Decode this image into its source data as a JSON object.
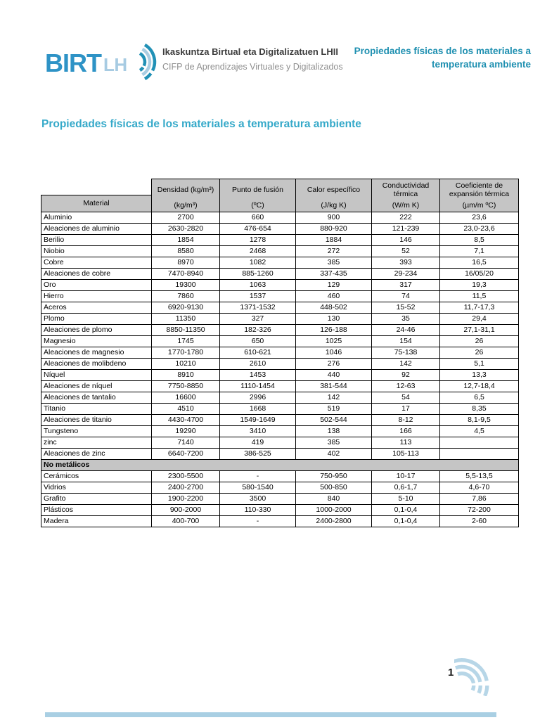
{
  "header": {
    "logo": {
      "brand": "BIRT",
      "brand_sub": "LH"
    },
    "org_line1": "Ikaskuntza Birtual eta Digitalizatuen LHII",
    "org_line2": "CIFP de Aprendizajes Virtuales y Digitalizados",
    "doc_title": "Propiedades físicas de los materiales a temperatura ambiente"
  },
  "page": {
    "heading": "Propiedades físicas de los materiales a temperatura ambiente",
    "number": "1"
  },
  "table": {
    "columns": [
      {
        "title": "Material",
        "unit": ""
      },
      {
        "title": "Densidad (kg/m³)",
        "unit": "(kg/m³)"
      },
      {
        "title": "Punto de fusión",
        "unit": "(ºC)"
      },
      {
        "title": "Calor específico",
        "unit": "(J/kg K)"
      },
      {
        "title": "Conductividad térmica",
        "unit": "(W/m K)"
      },
      {
        "title": "Coeficiente de expansión térmica",
        "unit": "(µm/m ºC)"
      }
    ],
    "metal_rows": [
      [
        "Aluminio",
        "2700",
        "660",
        "900",
        "222",
        "23,6"
      ],
      [
        "Aleaciones de aluminio",
        "2630-2820",
        "476-654",
        "880-920",
        "121-239",
        "23,0-23,6"
      ],
      [
        "Berilio",
        "1854",
        "1278",
        "1884",
        "146",
        "8,5"
      ],
      [
        "Niobio",
        "8580",
        "2468",
        "272",
        "52",
        "7,1"
      ],
      [
        "Cobre",
        "8970",
        "1082",
        "385",
        "393",
        "16,5"
      ],
      [
        "Aleaciones de cobre",
        "7470-8940",
        "885-1260",
        "337-435",
        "29-234",
        "16/05/20"
      ],
      [
        "Oro",
        "19300",
        "1063",
        "129",
        "317",
        "19,3"
      ],
      [
        "Hierro",
        "7860",
        "1537",
        "460",
        "74",
        "11,5"
      ],
      [
        "Aceros",
        "6920-9130",
        "1371-1532",
        "448-502",
        "15-52",
        "11,7-17,3"
      ],
      [
        "Plomo",
        "11350",
        "327",
        "130",
        "35",
        "29,4"
      ],
      [
        "Aleaciones de plomo",
        "8850-11350",
        "182-326",
        "126-188",
        "24-46",
        "27,1-31,1"
      ],
      [
        "Magnesio",
        "1745",
        "650",
        "1025",
        "154",
        "26"
      ],
      [
        "Aleaciones de magnesio",
        "1770-1780",
        "610-621",
        "1046",
        "75-138",
        "26"
      ],
      [
        "Aleaciones de molibdeno",
        "10210",
        "2610",
        "276",
        "142",
        "5,1"
      ],
      [
        "Níquel",
        "8910",
        "1453",
        "440",
        "92",
        "13,3"
      ],
      [
        "Aleaciones de níquel",
        "7750-8850",
        "1110-1454",
        "381-544",
        "12-63",
        "12,7-18,4"
      ],
      [
        "Aleaciones de tantalio",
        "16600",
        "2996",
        "142",
        "54",
        "6,5"
      ],
      [
        "Titanio",
        "4510",
        "1668",
        "519",
        "17",
        "8,35"
      ],
      [
        "Aleaciones de titanio",
        "4430-4700",
        "1549-1649",
        "502-544",
        "8-12",
        "8,1-9,5"
      ],
      [
        "Tungsteno",
        "19290",
        "3410",
        "138",
        "166",
        "4,5"
      ],
      [
        "zinc",
        "7140",
        "419",
        "385",
        "113",
        ""
      ],
      [
        "Aleaciones de zinc",
        "6640-7200",
        "386-525",
        "402",
        "105-113",
        ""
      ]
    ],
    "section_label": "No metálicos",
    "nonmetal_rows": [
      [
        "Cerámicos",
        "2300-5500",
        "-",
        "750-950",
        "10-17",
        "5,5-13,5"
      ],
      [
        "Vidrios",
        "2400-2700",
        "580-1540",
        "500-850",
        "0,6-1,7",
        "4,6-70"
      ],
      [
        "Grafito",
        "1900-2200",
        "3500",
        "840",
        "5-10",
        "7,86"
      ],
      [
        "Plásticos",
        "900-2000",
        "110-330",
        "1000-2000",
        "0,1-0,4",
        "72-200"
      ],
      [
        "Madera",
        "400-700",
        "-",
        "2400-2800",
        "0,1-0,4",
        "2-60"
      ]
    ]
  },
  "icons": {
    "logo_arcs": "wifi-arcs",
    "footer_arcs": "wifi-arcs"
  },
  "colors": {
    "brand_blue": "#2e93c6",
    "brand_light_blue": "#a7cbe2",
    "doc_title_teal": "#1d8fb0",
    "heading_teal": "#35a9c9",
    "table_header_gray": "#c5c5c5",
    "footer_bar_blue": "#a9cfe3",
    "footer_arcs_blue": "#b7d6e7"
  }
}
